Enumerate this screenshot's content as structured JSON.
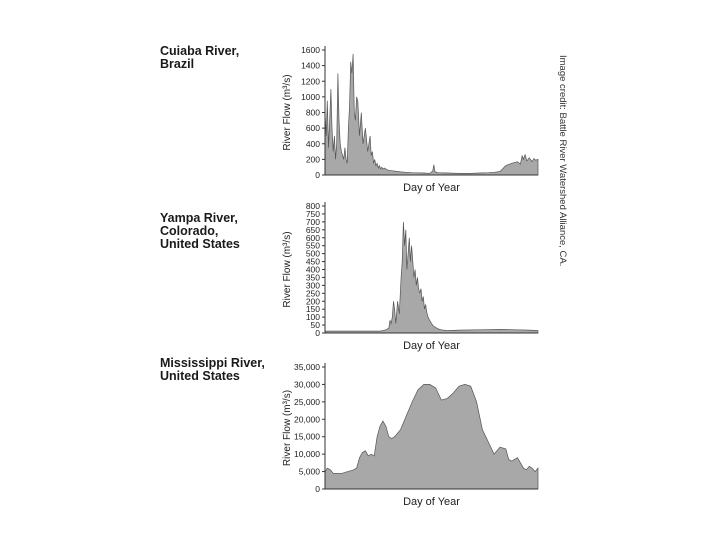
{
  "credit": "Image credit: Battle River Watershed Alliance, CA.",
  "colors": {
    "fill": "#a8a8a8",
    "stroke": "#555555",
    "axis": "#333333"
  },
  "chart_data": [
    {
      "type": "area",
      "title": "Cuiaba River,\nBrazil",
      "xlabel": "Day of Year",
      "ylabel": "River Flow (m³/s)",
      "ylim": [
        0,
        1600
      ],
      "yticks": [
        0,
        200,
        400,
        600,
        800,
        1000,
        1200,
        1400,
        1600
      ],
      "ytick_labels": [
        "0",
        "200",
        "400",
        "600",
        "800",
        "1000",
        "1200",
        "1400",
        "1600"
      ],
      "xlim": [
        1,
        365
      ],
      "x": [
        1,
        3,
        5,
        7,
        9,
        11,
        13,
        15,
        17,
        19,
        21,
        23,
        25,
        27,
        29,
        31,
        33,
        35,
        37,
        39,
        41,
        43,
        45,
        47,
        49,
        51,
        53,
        55,
        57,
        60,
        63,
        66,
        70,
        74,
        78,
        80,
        82,
        84,
        86,
        88,
        90,
        92,
        94,
        96,
        98,
        100,
        103,
        106,
        110,
        115,
        120,
        125,
        130,
        140,
        150,
        160,
        170,
        180,
        185,
        187,
        189,
        195,
        210,
        230,
        250,
        265,
        280,
        290,
        300,
        310,
        320,
        330,
        335,
        338,
        340,
        343,
        346,
        350,
        355,
        358,
        361,
        365
      ],
      "values": [
        800,
        500,
        950,
        350,
        700,
        1100,
        600,
        300,
        500,
        200,
        400,
        1300,
        700,
        400,
        300,
        250,
        200,
        350,
        200,
        150,
        600,
        900,
        1450,
        1300,
        1550,
        800,
        700,
        1000,
        950,
        500,
        800,
        400,
        600,
        300,
        500,
        250,
        300,
        150,
        200,
        120,
        150,
        90,
        120,
        80,
        100,
        75,
        90,
        70,
        60,
        55,
        50,
        45,
        40,
        35,
        30,
        28,
        25,
        22,
        50,
        130,
        40,
        30,
        25,
        20,
        20,
        25,
        30,
        35,
        45,
        120,
        150,
        170,
        140,
        250,
        200,
        260,
        180,
        220,
        170,
        210,
        190,
        200
      ]
    },
    {
      "type": "area",
      "title": "Yampa River,\nColorado,\nUnited States",
      "xlabel": "Day of Year",
      "ylabel": "River Flow (m³/s)",
      "ylim": [
        0,
        800
      ],
      "yticks": [
        0,
        50,
        100,
        150,
        200,
        250,
        300,
        350,
        400,
        450,
        500,
        550,
        600,
        650,
        700,
        750,
        800
      ],
      "ytick_labels": [
        "0",
        "50",
        "100",
        "150",
        "200",
        "250",
        "300",
        "350",
        "400",
        "450",
        "500",
        "550",
        "600",
        "650",
        "700",
        "750",
        "800"
      ],
      "xlim": [
        1,
        365
      ],
      "x": [
        1,
        40,
        80,
        95,
        100,
        105,
        110,
        112,
        114,
        116,
        118,
        120,
        122,
        125,
        128,
        131,
        133,
        135,
        137,
        139,
        141,
        143,
        145,
        147,
        149,
        151,
        153,
        155,
        157,
        159,
        161,
        163,
        165,
        167,
        169,
        171,
        173,
        175,
        177,
        180,
        183,
        186,
        190,
        195,
        200,
        210,
        230,
        260,
        300,
        330,
        350,
        365
      ],
      "values": [
        12,
        12,
        12,
        12,
        15,
        20,
        30,
        80,
        60,
        100,
        200,
        150,
        60,
        200,
        120,
        350,
        450,
        700,
        550,
        650,
        400,
        500,
        600,
        450,
        550,
        450,
        350,
        400,
        300,
        350,
        280,
        250,
        280,
        200,
        230,
        150,
        180,
        130,
        100,
        80,
        60,
        45,
        35,
        25,
        20,
        15,
        18,
        20,
        22,
        20,
        18,
        15
      ]
    },
    {
      "type": "area",
      "title": "Mississippi River,\nUnited States",
      "xlabel": "Day of Year",
      "ylabel": "River Flow (m³/s)",
      "ylim": [
        0,
        35000
      ],
      "yticks": [
        0,
        5000,
        10000,
        15000,
        20000,
        25000,
        30000,
        35000
      ],
      "ytick_labels": [
        "0",
        "5,000",
        "10,000",
        "15,000",
        "20,000",
        "25,000",
        "30,000",
        "35,000"
      ],
      "xlim": [
        1,
        365
      ],
      "x": [
        1,
        5,
        10,
        15,
        20,
        30,
        40,
        50,
        55,
        60,
        65,
        70,
        75,
        80,
        85,
        90,
        95,
        100,
        105,
        110,
        115,
        120,
        130,
        140,
        150,
        160,
        170,
        180,
        190,
        200,
        210,
        220,
        230,
        240,
        250,
        260,
        270,
        280,
        290,
        300,
        310,
        315,
        320,
        330,
        340,
        345,
        350,
        355,
        360,
        365
      ],
      "values": [
        5000,
        6000,
        5500,
        4500,
        4500,
        4500,
        5000,
        5500,
        6000,
        9000,
        10500,
        11000,
        9500,
        10000,
        9500,
        15000,
        18000,
        19500,
        18000,
        15000,
        14500,
        15000,
        17000,
        21000,
        25000,
        28500,
        30000,
        30000,
        29000,
        25500,
        26000,
        27500,
        29500,
        30000,
        29500,
        25000,
        17000,
        13500,
        10000,
        12000,
        11500,
        8500,
        8000,
        9000,
        6000,
        5500,
        6500,
        6000,
        5000,
        6000
      ]
    }
  ]
}
